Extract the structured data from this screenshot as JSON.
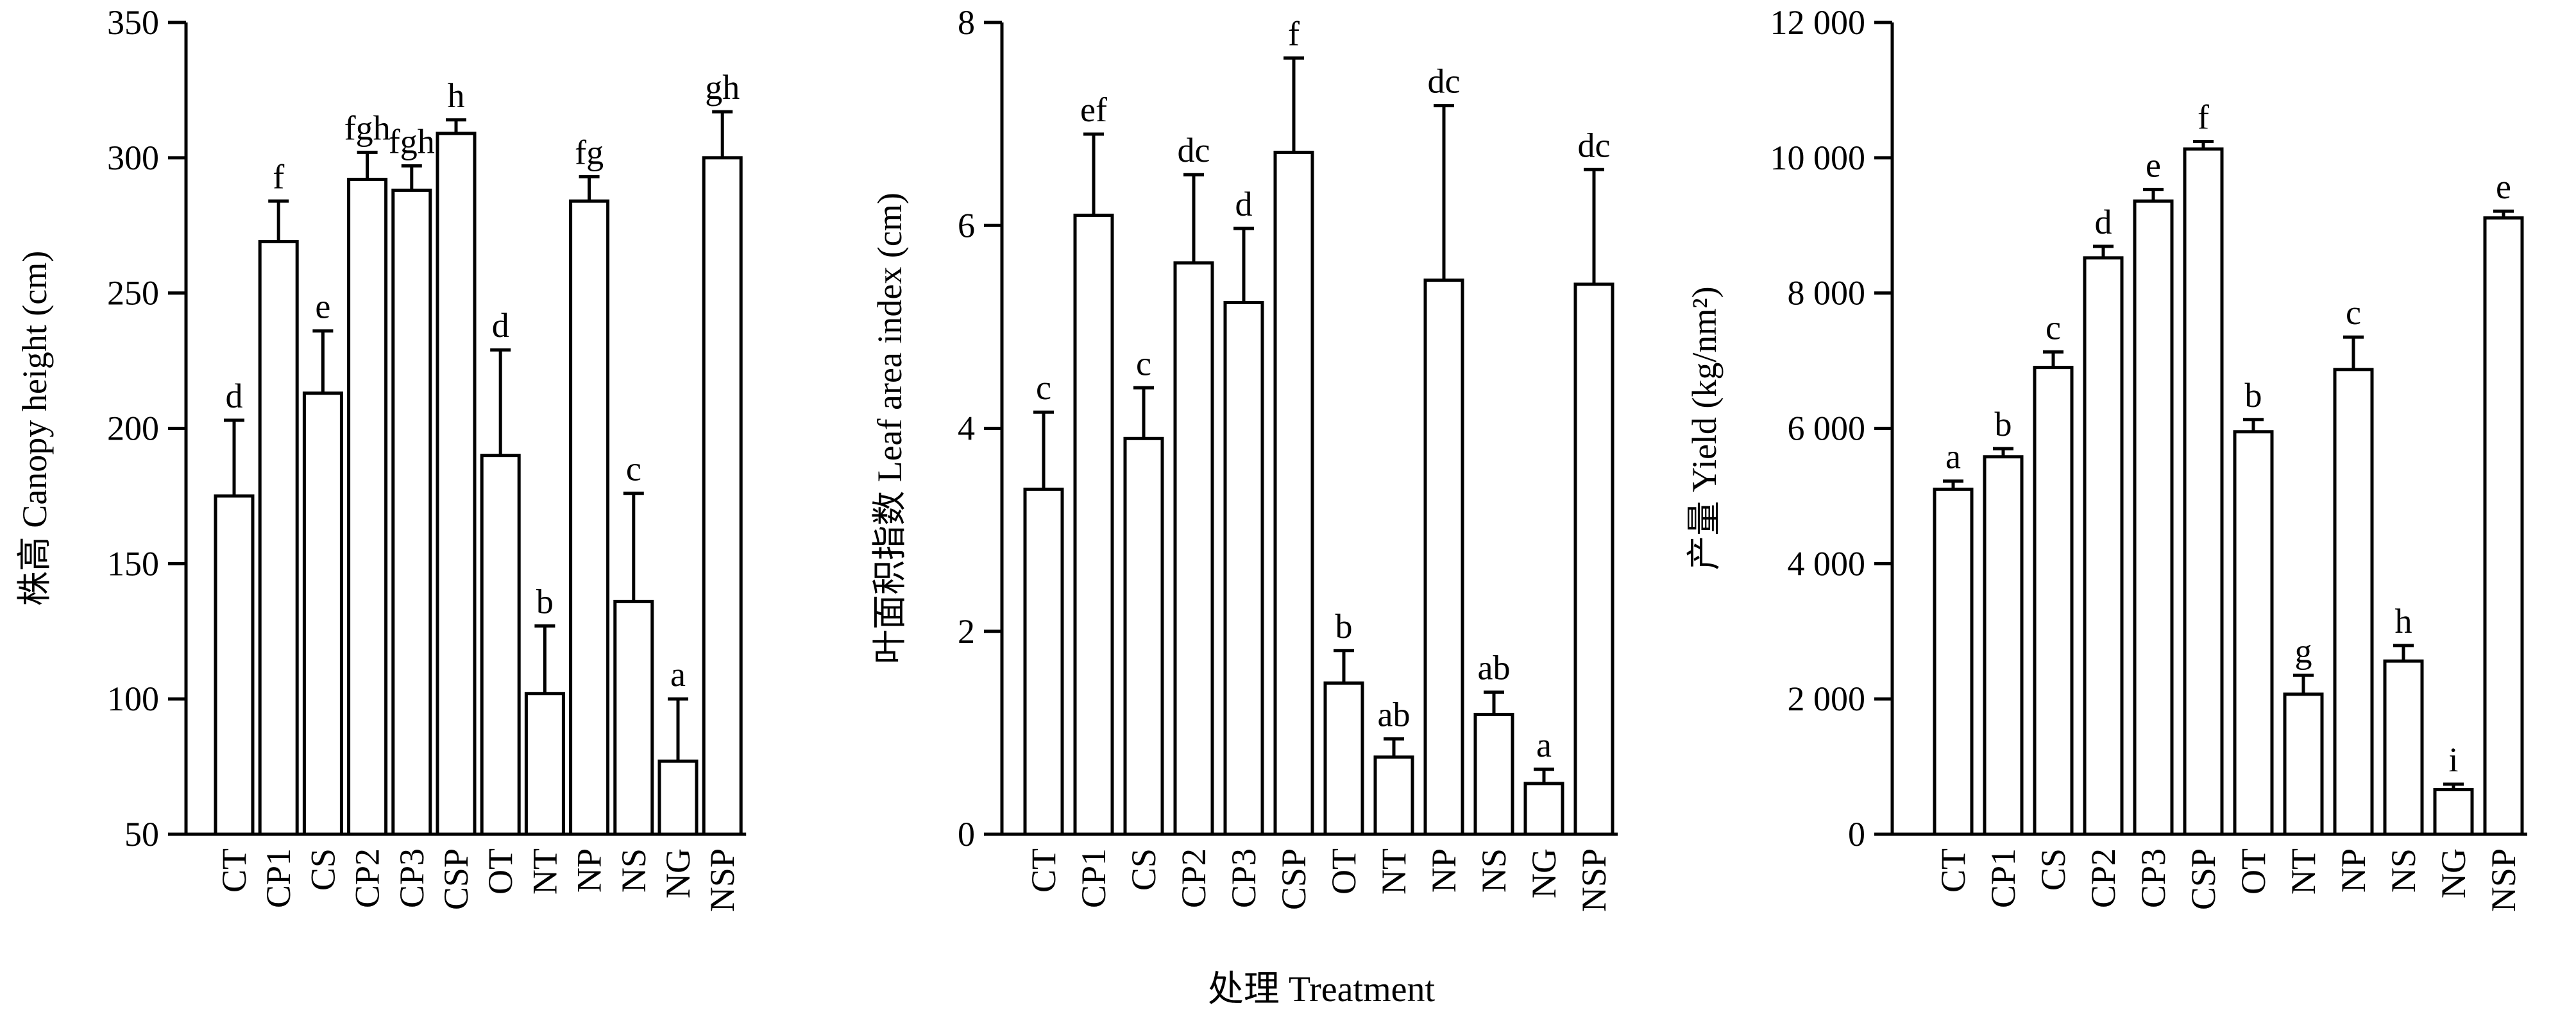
{
  "x_title": "处理 Treatment",
  "chart_data": [
    {
      "type": "bar",
      "ylabel": "株高 Canopy height (cm)",
      "ylim": [
        50,
        350
      ],
      "yticks": [
        50,
        100,
        150,
        200,
        250,
        300,
        350
      ],
      "ytick_labels": [
        "50",
        "100",
        "150",
        "200",
        "250",
        "300",
        "350"
      ],
      "categories": [
        "CT",
        "CP1",
        "CS",
        "CP2",
        "CP3",
        "CSP",
        "OT",
        "NT",
        "NP",
        "NS",
        "NG",
        "NSP"
      ],
      "values": [
        175,
        269,
        213,
        292,
        288,
        309,
        190,
        102,
        284,
        136,
        77,
        300
      ],
      "errors": [
        28,
        15,
        23,
        10,
        9,
        5,
        39,
        25,
        9,
        40,
        23,
        17
      ],
      "significance": [
        "d",
        "f",
        "e",
        "fgh",
        "fgh",
        "h",
        "d",
        "b",
        "fg",
        "c",
        "a",
        "gh"
      ]
    },
    {
      "type": "bar",
      "ylabel": "叶面积指数 Leaf area index (cm)",
      "ylim": [
        0,
        8
      ],
      "yticks": [
        0,
        2,
        4,
        6,
        8
      ],
      "ytick_labels": [
        "0",
        "2",
        "4",
        "6",
        "8"
      ],
      "categories": [
        "CT",
        "CP1",
        "CS",
        "CP2",
        "CP3",
        "CSP",
        "OT",
        "NT",
        "NP",
        "NS",
        "NG",
        "NSP"
      ],
      "values": [
        3.4,
        6.1,
        3.9,
        5.63,
        5.24,
        6.72,
        1.49,
        0.76,
        5.46,
        1.18,
        0.5,
        5.42
      ],
      "errors": [
        0.76,
        0.8,
        0.5,
        0.87,
        0.73,
        0.93,
        0.32,
        0.18,
        1.72,
        0.22,
        0.14,
        1.13
      ],
      "significance": [
        "c",
        "ef",
        "c",
        "dc",
        "d",
        "f",
        "b",
        "ab",
        "dc",
        "ab",
        "a",
        "dc"
      ]
    },
    {
      "type": "bar",
      "ylabel": "产量 Yield (kg/nm²)",
      "ylim": [
        0,
        12000
      ],
      "yticks": [
        0,
        2000,
        4000,
        6000,
        8000,
        10000,
        12000
      ],
      "ytick_labels": [
        "0",
        "2 000",
        "4 000",
        "6 000",
        "8 000",
        "10 000",
        "12 000"
      ],
      "categories": [
        "CT",
        "CP1",
        "CS",
        "CP2",
        "CP3",
        "CSP",
        "OT",
        "NT",
        "NP",
        "NS",
        "NG",
        "NSP"
      ],
      "values": [
        5100,
        5580,
        6900,
        8520,
        9360,
        10130,
        5950,
        2070,
        6870,
        2560,
        660,
        9110
      ],
      "errors": [
        120,
        120,
        230,
        170,
        170,
        110,
        180,
        280,
        480,
        230,
        80,
        100
      ],
      "significance": [
        "a",
        "b",
        "c",
        "d",
        "e",
        "f",
        "b",
        "g",
        "c",
        "h",
        "i",
        "e"
      ]
    }
  ]
}
